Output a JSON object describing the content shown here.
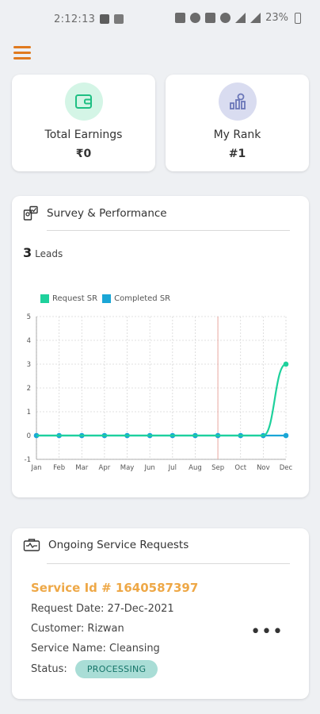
{
  "status_bar": {
    "time": "2:12:13",
    "battery": "23%"
  },
  "stats": {
    "earnings": {
      "label": "Total Earnings",
      "value": "₹0",
      "circle_color": "#d4f5e6",
      "icon_color": "#1fbf83"
    },
    "rank": {
      "label": "My Rank",
      "value": "#1",
      "circle_color": "#d9dcf0",
      "icon_color": "#6b77b8"
    }
  },
  "performance": {
    "title": "Survey & Performance",
    "leads_count": "3",
    "leads_label": "Leads"
  },
  "chart_data": {
    "type": "line",
    "categories": [
      "Jan",
      "Feb",
      "Mar",
      "Apr",
      "May",
      "Jun",
      "Jul",
      "Aug",
      "Sep",
      "Oct",
      "Nov",
      "Dec"
    ],
    "series": [
      {
        "name": "Request SR",
        "color": "#1ed19c",
        "values": [
          0,
          0,
          0,
          0,
          0,
          0,
          0,
          0,
          0,
          0,
          0,
          3
        ]
      },
      {
        "name": "Completed SR",
        "color": "#1aa6d6",
        "values": [
          0,
          0,
          0,
          0,
          0,
          0,
          0,
          0,
          0,
          0,
          0,
          0
        ]
      }
    ],
    "y_ticks": [
      "-1",
      "0",
      "1",
      "2",
      "3",
      "4",
      "5"
    ],
    "ylim": [
      -1,
      5
    ],
    "grid": true,
    "highlight_category": "Sep",
    "highlight_color": "#e8a8a0",
    "legend_position": "top-left"
  },
  "service_requests": {
    "title": "Ongoing Service Requests",
    "item": {
      "service_id": "Service Id # 1640587397",
      "request_date": "Request Date: 27-Dec-2021",
      "customer": "Customer: Rizwan",
      "service_name": "Service Name: Cleansing",
      "status_label": "Status:",
      "status_value": "PROCESSING",
      "more": "•••"
    }
  }
}
